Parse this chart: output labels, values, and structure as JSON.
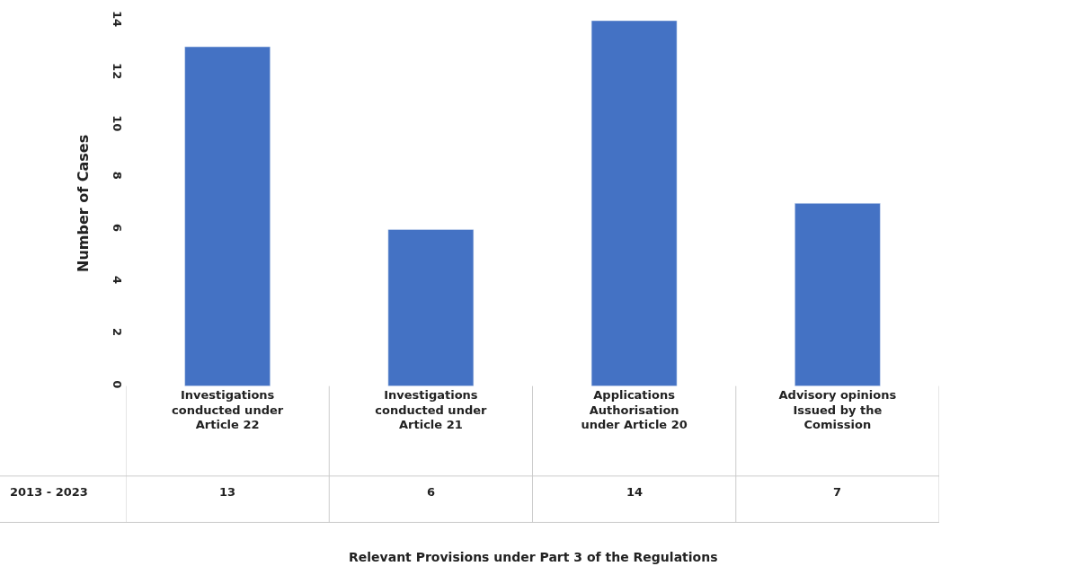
{
  "chart_data": {
    "type": "bar",
    "annotations": [
      "Relevant Provisions under Part 3 of the Regulations"
    ],
    "ylabel": "Number of Cases",
    "categories": [
      "Investigations conducted under Article 22",
      "Investigations conducted under Article 21",
      "Applications Authorisation under Article 20",
      "Advisory opinions Issued by the Comission"
    ],
    "series": [
      {
        "name": "2013 - 2023",
        "color": "#4472c4",
        "values": [
          13,
          6,
          14,
          7
        ]
      }
    ],
    "ylim": [
      0,
      14
    ],
    "yticks": [
      0,
      2,
      4,
      6,
      8,
      10,
      12,
      14
    ],
    "data_labels": true,
    "legend": false
  }
}
